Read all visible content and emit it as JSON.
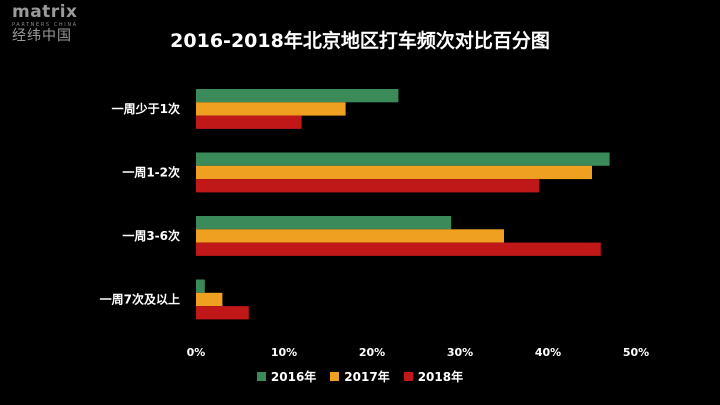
{
  "logo": {
    "main": "matrix",
    "sub": "PARTNERS CHINA",
    "cn": "经纬中国"
  },
  "chart_data": {
    "type": "bar",
    "orientation": "horizontal",
    "title": "2016-2018年北京地区打车频次对比百分图",
    "categories": [
      "一周少于1次",
      "一周1-2次",
      "一周3-6次",
      "一周7次及以上"
    ],
    "series": [
      {
        "name": "2016年",
        "color": "#3a8a5a",
        "values": [
          23,
          47,
          29,
          1
        ]
      },
      {
        "name": "2017年",
        "color": "#f0a020",
        "values": [
          17,
          45,
          35,
          3
        ]
      },
      {
        "name": "2018年",
        "color": "#c01818",
        "values": [
          12,
          39,
          46,
          6
        ]
      }
    ],
    "xlim": [
      0,
      50
    ],
    "xticks": [
      "0%",
      "10%",
      "20%",
      "30%",
      "40%",
      "50%"
    ],
    "grid": false,
    "legend_position": "bottom"
  }
}
